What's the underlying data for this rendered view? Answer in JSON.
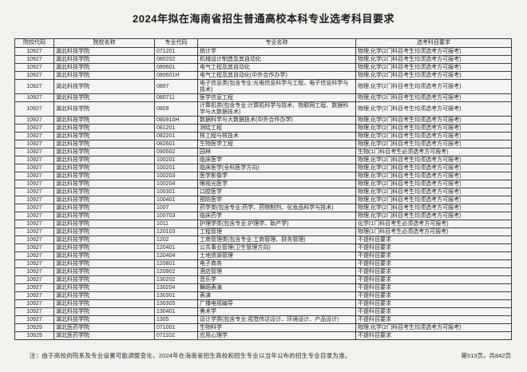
{
  "title": "2024年拟在海南省招生普通高校本科专业选考科目要求",
  "table": {
    "headers": [
      "院校代码",
      "院校名称",
      "专业代码",
      "专业名称",
      "选考科目要求"
    ],
    "rows": [
      {
        "college_code": "10927",
        "college_name": "湖北科技学院",
        "major_code": "071201",
        "major_name": "统计学",
        "requirement": "物理,化学(2门科目考生均须选考方可报考)"
      },
      {
        "college_code": "10927",
        "college_name": "湖北科技学院",
        "major_code": "080202",
        "major_name": "机械设计制造及其自动化",
        "requirement": "物理,化学(2门科目考生均须选考方可报考)"
      },
      {
        "college_code": "10927",
        "college_name": "湖北科技学院",
        "major_code": "080601",
        "major_name": "电气工程及其自动化",
        "requirement": "物理,化学(2门科目考生均须选考方可报考)"
      },
      {
        "college_code": "10927",
        "college_name": "湖北科技学院",
        "major_code": "080601H",
        "major_name": "电气工程及其自动化(中外合作办学)",
        "requirement": "物理,化学(2门科目考生均须选考方可报考)"
      },
      {
        "college_code": "10927",
        "college_name": "湖北科技学院",
        "major_code": "0807",
        "major_name": "电子信息类(包含专业:光电信息科学与工程、电子信息科学与技术)",
        "requirement": "物理,化学(2门科目考生均须选考方可报考)"
      },
      {
        "college_code": "10927",
        "college_name": "湖北科技学院",
        "major_code": "080711",
        "major_name": "医学信息工程",
        "requirement": "物理,化学(2门科目考生均须选考方可报考)"
      },
      {
        "college_code": "10927",
        "college_name": "湖北科技学院",
        "major_code": "0809",
        "major_name": "计算机类(包含专业:计算机科学与技术、物联网工程、数据科学与大数据技术)",
        "requirement": "物理,化学(2门科目考生均须选考方可报考)"
      },
      {
        "college_code": "10927",
        "college_name": "湖北科技学院",
        "major_code": "080910H",
        "major_name": "数据科学与大数据技术(中外合作办学)",
        "requirement": "物理,化学(2门科目考生均须选考方可报考)"
      },
      {
        "college_code": "10927",
        "college_name": "湖北科技学院",
        "major_code": "081201",
        "major_name": "测绘工程",
        "requirement": "物理,化学(2门科目考生均须选考方可报考)"
      },
      {
        "college_code": "10927",
        "college_name": "湖北科技学院",
        "major_code": "082201",
        "major_name": "核工程与核技术",
        "requirement": "物理,化学(2门科目考生均须选考方可报考)"
      },
      {
        "college_code": "10927",
        "college_name": "湖北科技学院",
        "major_code": "082601",
        "major_name": "生物医学工程",
        "requirement": "物理,化学(2门科目考生均须选考方可报考)"
      },
      {
        "college_code": "10927",
        "college_name": "湖北科技学院",
        "major_code": "090502",
        "major_name": "园林",
        "requirement": "生物(1门科目考生必须选考方可报考)"
      },
      {
        "college_code": "10927",
        "college_name": "湖北科技学院",
        "major_code": "100201",
        "major_name": "临床医学",
        "requirement": "物理,化学(2门科目考生均须选考方可报考)"
      },
      {
        "college_code": "10927",
        "college_name": "湖北科技学院",
        "major_code": "100201",
        "major_name": "临床医学(全科医学方向)",
        "requirement": "物理,化学(2门科目考生均须选考方可报考)"
      },
      {
        "college_code": "10927",
        "college_name": "湖北科技学院",
        "major_code": "100203",
        "major_name": "医学影像学",
        "requirement": "物理,化学(2门科目考生均须选考方可报考)"
      },
      {
        "college_code": "10927",
        "college_name": "湖北科技学院",
        "major_code": "100204",
        "major_name": "眼视光医学",
        "requirement": "物理,化学(2门科目考生均须选考方可报考)"
      },
      {
        "college_code": "10927",
        "college_name": "湖北科技学院",
        "major_code": "100301",
        "major_name": "口腔医学",
        "requirement": "物理,化学(2门科目考生均须选考方可报考)"
      },
      {
        "college_code": "10927",
        "college_name": "湖北科技学院",
        "major_code": "100401",
        "major_name": "预防医学",
        "requirement": "物理,化学(2门科目考生均须选考方可报考)"
      },
      {
        "college_code": "10927",
        "college_name": "湖北科技学院",
        "major_code": "1007",
        "major_name": "药学类(包含专业:药学、药物制剂、化妆品科学与技术)",
        "requirement": "物理,化学(2门科目考生均须选考方可报考)"
      },
      {
        "college_code": "10927",
        "college_name": "湖北科技学院",
        "major_code": "100703",
        "major_name": "临床药学",
        "requirement": "物理,化学(2门科目考生均须选考方可报考)"
      },
      {
        "college_code": "10927",
        "college_name": "湖北科技学院",
        "major_code": "1011",
        "major_name": "护理学类(包含专业:护理学、助产学)",
        "requirement": "化学(1门科目考生必须选考方可报考)"
      },
      {
        "college_code": "10927",
        "college_name": "湖北科技学院",
        "major_code": "120103",
        "major_name": "工程管理",
        "requirement": "物理(1门科目考生必须选考方可报考)"
      },
      {
        "college_code": "10927",
        "college_name": "湖北科技学院",
        "major_code": "1202",
        "major_name": "工商管理类(包含专业:工商管理、财务管理)",
        "requirement": "不提科目要求"
      },
      {
        "college_code": "10927",
        "college_name": "湖北科技学院",
        "major_code": "120401",
        "major_name": "公共事业管理(卫生管理方向)",
        "requirement": "不提科目要求"
      },
      {
        "college_code": "10927",
        "college_name": "湖北科技学院",
        "major_code": "120404",
        "major_name": "土地资源管理",
        "requirement": "不提科目要求"
      },
      {
        "college_code": "10927",
        "college_name": "湖北科技学院",
        "major_code": "120801",
        "major_name": "电子商务",
        "requirement": "不提科目要求"
      },
      {
        "college_code": "10927",
        "college_name": "湖北科技学院",
        "major_code": "120902",
        "major_name": "酒店管理",
        "requirement": "不提科目要求"
      },
      {
        "college_code": "10927",
        "college_name": "湖北科技学院",
        "major_code": "130202",
        "major_name": "音乐学",
        "requirement": "不提科目要求"
      },
      {
        "college_code": "10927",
        "college_name": "湖北科技学院",
        "major_code": "130204",
        "major_name": "舞蹈表演",
        "requirement": "不提科目要求"
      },
      {
        "college_code": "10927",
        "college_name": "湖北科技学院",
        "major_code": "130301",
        "major_name": "表演",
        "requirement": "不提科目要求"
      },
      {
        "college_code": "10927",
        "college_name": "湖北科技学院",
        "major_code": "130305",
        "major_name": "广播电视编导",
        "requirement": "不提科目要求"
      },
      {
        "college_code": "10927",
        "college_name": "湖北科技学院",
        "major_code": "130401",
        "major_name": "美术学",
        "requirement": "不提科目要求"
      },
      {
        "college_code": "10927",
        "college_name": "湖北科技学院",
        "major_code": "1305",
        "major_name": "设计学类(包含专业:视觉传达设计、环境设计、产品设计)",
        "requirement": "不提科目要求"
      },
      {
        "college_code": "10929",
        "college_name": "湖北医药学院",
        "major_code": "071001",
        "major_name": "生物科学",
        "requirement": "物理,化学(2门科目考生均须选考方可报考)"
      },
      {
        "college_code": "10929",
        "college_name": "湖北医药学院",
        "major_code": "071102",
        "major_name": "应用心理学",
        "requirement": "不提科目要求"
      }
    ]
  },
  "footer": {
    "note": "注：由于高校的院系及专业设置可能调整变化，2024年在海南省招生高校和招生专业以当年公布的招生专业目录为准。",
    "page_info": "第513页，共842页"
  },
  "colors": {
    "page_background": "#f2f1ee",
    "table_border": "#3c3c3c",
    "text": "#262626"
  }
}
